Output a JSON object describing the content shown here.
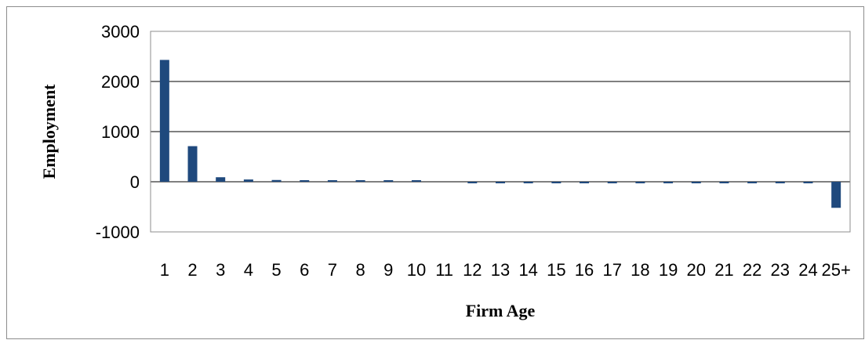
{
  "chart_data": {
    "type": "bar",
    "title": "",
    "xlabel": "Firm Age",
    "ylabel": "Employment",
    "categories": [
      "1",
      "2",
      "3",
      "4",
      "5",
      "6",
      "7",
      "8",
      "9",
      "10",
      "11",
      "12",
      "13",
      "14",
      "15",
      "16",
      "17",
      "18",
      "19",
      "20",
      "21",
      "22",
      "23",
      "24",
      "25+"
    ],
    "series": [
      {
        "values": [
          2430,
          710,
          90,
          45,
          35,
          25,
          20,
          18,
          15,
          5,
          0,
          -15,
          -20,
          -20,
          -20,
          -20,
          -20,
          -20,
          -20,
          -20,
          -20,
          -20,
          -20,
          -20,
          -520
        ]
      }
    ],
    "ylim": [
      -1000,
      3000
    ],
    "yticks": [
      -1000,
      0,
      1000,
      2000,
      3000
    ],
    "grid": true,
    "colors": {
      "bar": "#1f497d",
      "grid": "#000000",
      "frame": "#8c8c8c"
    }
  }
}
